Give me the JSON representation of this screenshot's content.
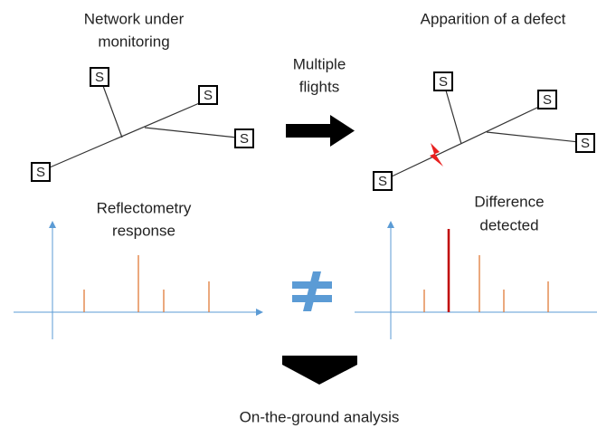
{
  "left_title": [
    "Network under",
    "monitoring"
  ],
  "middle_label": [
    "Multiple",
    "flights"
  ],
  "right_title": "Apparition of a defect",
  "left_response": [
    "Reflectometry",
    "response"
  ],
  "right_response": [
    "Difference",
    "detected"
  ],
  "bottom_label": "On-the-ground analysis",
  "left_nodes": [
    {
      "label": "S"
    },
    {
      "label": "S"
    },
    {
      "label": "S"
    },
    {
      "label": "S"
    }
  ],
  "right_nodes": [
    {
      "label": "S"
    },
    {
      "label": "S"
    },
    {
      "label": "S"
    },
    {
      "label": "S"
    }
  ]
}
